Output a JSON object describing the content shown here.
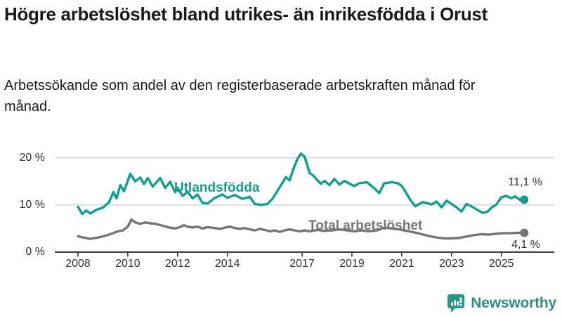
{
  "header": {
    "title": "Högre arbetslöshet bland utrikes- än inrikesfödda i Orust",
    "subtitle": "Arbetssökande som andel av den registerbaserade arbetskraften månad för månad."
  },
  "chart_data": {
    "type": "line",
    "title": "Högre arbetslöshet bland utrikes- än inrikesfödda i Orust",
    "xlabel": "",
    "ylabel": "",
    "ylim": [
      0,
      22
    ],
    "xlim": [
      2007.9,
      2026.3
    ],
    "grid": "horizontal-gridlines-at-labeled-y-ticks",
    "legend_position": "inline-series-labels",
    "axis_color": "#3c3c3c",
    "gridline_color": "#d9d9d9",
    "y_ticks": [
      {
        "value": 20,
        "label": "20 %"
      },
      {
        "value": 10,
        "label": "10 %"
      },
      {
        "value": 0,
        "label": "0 %"
      }
    ],
    "x_ticks": [
      {
        "value": 2008,
        "label": "2008"
      },
      {
        "value": 2010,
        "label": "2010"
      },
      {
        "value": 2012,
        "label": "2012"
      },
      {
        "value": 2014,
        "label": "2014"
      },
      {
        "value": 2017,
        "label": "2017"
      },
      {
        "value": 2019,
        "label": "2019"
      },
      {
        "value": 2021,
        "label": "2021"
      },
      {
        "value": 2023,
        "label": "2023"
      },
      {
        "value": 2025,
        "label": "2025"
      }
    ],
    "series": [
      {
        "name": "Utlandsfödda",
        "color": "#119e8e",
        "end_label": "11,1 %",
        "end_value": 11.1,
        "points": [
          [
            2008.0,
            9.6
          ],
          [
            2008.17,
            8.1
          ],
          [
            2008.33,
            8.8
          ],
          [
            2008.5,
            8.2
          ],
          [
            2008.75,
            9.0
          ],
          [
            2009.0,
            9.4
          ],
          [
            2009.25,
            10.6
          ],
          [
            2009.42,
            12.7
          ],
          [
            2009.55,
            11.4
          ],
          [
            2009.7,
            14.2
          ],
          [
            2009.85,
            12.9
          ],
          [
            2010.1,
            16.6
          ],
          [
            2010.3,
            15.0
          ],
          [
            2010.5,
            15.8
          ],
          [
            2010.65,
            14.4
          ],
          [
            2010.8,
            15.7
          ],
          [
            2011.0,
            13.9
          ],
          [
            2011.3,
            15.7
          ],
          [
            2011.5,
            13.6
          ],
          [
            2011.7,
            14.9
          ],
          [
            2011.9,
            12.7
          ],
          [
            2012.0,
            13.6
          ],
          [
            2012.2,
            11.9
          ],
          [
            2012.4,
            12.8
          ],
          [
            2012.6,
            11.4
          ],
          [
            2012.8,
            12.2
          ],
          [
            2013.0,
            10.4
          ],
          [
            2013.2,
            10.3
          ],
          [
            2013.5,
            11.5
          ],
          [
            2013.8,
            12.2
          ],
          [
            2014.0,
            11.5
          ],
          [
            2014.3,
            12.1
          ],
          [
            2014.6,
            11.3
          ],
          [
            2014.9,
            11.7
          ],
          [
            2015.1,
            10.2
          ],
          [
            2015.35,
            10.0
          ],
          [
            2015.6,
            10.2
          ],
          [
            2015.8,
            11.2
          ],
          [
            2016.0,
            12.9
          ],
          [
            2016.2,
            14.6
          ],
          [
            2016.35,
            15.9
          ],
          [
            2016.5,
            15.2
          ],
          [
            2016.65,
            17.6
          ],
          [
            2016.8,
            19.6
          ],
          [
            2016.95,
            20.9
          ],
          [
            2017.1,
            20.2
          ],
          [
            2017.3,
            16.8
          ],
          [
            2017.45,
            16.2
          ],
          [
            2017.6,
            15.3
          ],
          [
            2017.75,
            14.5
          ],
          [
            2017.9,
            15.1
          ],
          [
            2018.1,
            14.2
          ],
          [
            2018.3,
            15.5
          ],
          [
            2018.5,
            14.3
          ],
          [
            2018.7,
            15.1
          ],
          [
            2018.9,
            14.5
          ],
          [
            2019.1,
            14.0
          ],
          [
            2019.3,
            14.6
          ],
          [
            2019.6,
            14.8
          ],
          [
            2019.9,
            13.5
          ],
          [
            2020.1,
            12.5
          ],
          [
            2020.3,
            14.6
          ],
          [
            2020.6,
            14.8
          ],
          [
            2020.85,
            14.6
          ],
          [
            2021.0,
            14.0
          ],
          [
            2021.15,
            12.8
          ],
          [
            2021.35,
            11.0
          ],
          [
            2021.55,
            9.7
          ],
          [
            2021.7,
            10.2
          ],
          [
            2021.85,
            10.6
          ],
          [
            2022.0,
            10.4
          ],
          [
            2022.2,
            10.1
          ],
          [
            2022.4,
            10.7
          ],
          [
            2022.6,
            9.5
          ],
          [
            2022.8,
            10.9
          ],
          [
            2023.0,
            10.2
          ],
          [
            2023.2,
            9.5
          ],
          [
            2023.4,
            8.6
          ],
          [
            2023.6,
            10.2
          ],
          [
            2023.8,
            9.7
          ],
          [
            2024.05,
            8.9
          ],
          [
            2024.25,
            8.3
          ],
          [
            2024.45,
            8.6
          ],
          [
            2024.6,
            9.4
          ],
          [
            2024.8,
            10.1
          ],
          [
            2025.0,
            11.6
          ],
          [
            2025.2,
            11.9
          ],
          [
            2025.4,
            11.4
          ],
          [
            2025.55,
            11.8
          ],
          [
            2025.75,
            11.1
          ],
          [
            2025.92,
            11.1
          ]
        ]
      },
      {
        "name": "Total arbetslöshet",
        "color": "#757575",
        "end_label": "4,1 %",
        "end_value": 4.1,
        "points": [
          [
            2008.0,
            3.4
          ],
          [
            2008.2,
            3.1
          ],
          [
            2008.5,
            2.8
          ],
          [
            2008.8,
            3.1
          ],
          [
            2009.0,
            3.3
          ],
          [
            2009.3,
            3.8
          ],
          [
            2009.6,
            4.4
          ],
          [
            2009.8,
            4.6
          ],
          [
            2010.0,
            5.4
          ],
          [
            2010.15,
            6.9
          ],
          [
            2010.3,
            6.3
          ],
          [
            2010.5,
            6.0
          ],
          [
            2010.7,
            6.3
          ],
          [
            2010.9,
            6.1
          ],
          [
            2011.1,
            6.0
          ],
          [
            2011.4,
            5.6
          ],
          [
            2011.6,
            5.3
          ],
          [
            2011.9,
            5.0
          ],
          [
            2012.1,
            5.3
          ],
          [
            2012.25,
            5.7
          ],
          [
            2012.4,
            5.4
          ],
          [
            2012.6,
            5.2
          ],
          [
            2012.8,
            5.4
          ],
          [
            2013.0,
            5.0
          ],
          [
            2013.2,
            5.3
          ],
          [
            2013.5,
            5.1
          ],
          [
            2013.7,
            4.9
          ],
          [
            2013.9,
            5.2
          ],
          [
            2014.1,
            5.4
          ],
          [
            2014.3,
            5.1
          ],
          [
            2014.5,
            4.9
          ],
          [
            2014.7,
            5.1
          ],
          [
            2014.9,
            4.8
          ],
          [
            2015.1,
            4.6
          ],
          [
            2015.3,
            4.9
          ],
          [
            2015.5,
            4.7
          ],
          [
            2015.7,
            4.4
          ],
          [
            2015.9,
            4.6
          ],
          [
            2016.1,
            4.3
          ],
          [
            2016.3,
            4.6
          ],
          [
            2016.5,
            4.8
          ],
          [
            2016.7,
            4.6
          ],
          [
            2016.9,
            4.4
          ],
          [
            2017.1,
            4.6
          ],
          [
            2017.3,
            4.4
          ],
          [
            2017.6,
            4.7
          ],
          [
            2017.9,
            4.5
          ],
          [
            2018.2,
            4.6
          ],
          [
            2018.5,
            4.8
          ],
          [
            2018.8,
            4.6
          ],
          [
            2019.1,
            4.4
          ],
          [
            2019.4,
            4.6
          ],
          [
            2019.7,
            4.4
          ],
          [
            2020.0,
            4.6
          ],
          [
            2020.3,
            5.2
          ],
          [
            2020.6,
            5.0
          ],
          [
            2020.9,
            4.8
          ],
          [
            2021.2,
            4.5
          ],
          [
            2021.5,
            4.2
          ],
          [
            2021.8,
            3.8
          ],
          [
            2022.1,
            3.4
          ],
          [
            2022.4,
            3.1
          ],
          [
            2022.7,
            2.9
          ],
          [
            2023.0,
            2.9
          ],
          [
            2023.3,
            3.0
          ],
          [
            2023.6,
            3.3
          ],
          [
            2023.9,
            3.6
          ],
          [
            2024.2,
            3.8
          ],
          [
            2024.5,
            3.7
          ],
          [
            2024.8,
            3.9
          ],
          [
            2025.1,
            4.0
          ],
          [
            2025.4,
            4.0
          ],
          [
            2025.7,
            4.1
          ],
          [
            2025.92,
            4.1
          ]
        ]
      }
    ]
  },
  "footer": {
    "brand": "Newsworthy",
    "logo_color": "#24998c",
    "brand_text_color": "#2d8c85"
  }
}
